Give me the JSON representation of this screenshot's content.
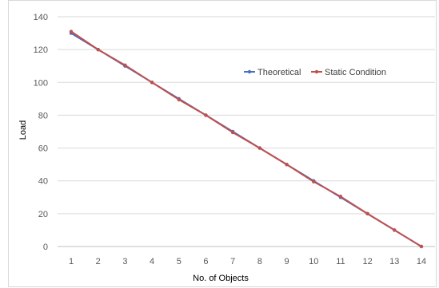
{
  "chart_data": {
    "type": "line",
    "title": "",
    "xlabel": "No. of Objects",
    "ylabel": "Load",
    "ylim": [
      0,
      140
    ],
    "y_ticks": [
      0,
      20,
      40,
      60,
      80,
      100,
      120,
      140
    ],
    "x": [
      1,
      2,
      3,
      4,
      5,
      6,
      7,
      8,
      9,
      10,
      11,
      12,
      13,
      14
    ],
    "grid": "horizontal",
    "legend_position": "upper-right",
    "series": [
      {
        "name": "Theoretical",
        "color": "#4472c4",
        "values": [
          130,
          120,
          110,
          100,
          90,
          80,
          70,
          60,
          50,
          40,
          30,
          20,
          10,
          0
        ]
      },
      {
        "name": "Static Condition",
        "color": "#c0504d",
        "values": [
          131,
          120,
          110.5,
          100,
          89.5,
          80,
          69.5,
          60,
          50,
          39.5,
          30.5,
          20,
          10,
          0
        ]
      }
    ]
  }
}
